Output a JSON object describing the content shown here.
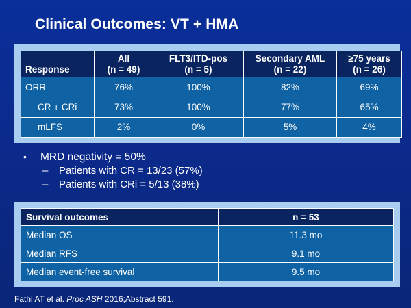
{
  "slide": {
    "title": "Clinical Outcomes: VT + HMA"
  },
  "response_table": {
    "header": {
      "response": "Response",
      "columns": [
        {
          "line1": "All",
          "line2": "(n = 49)"
        },
        {
          "line1": "FLT3/ITD-pos",
          "line2": "(n = 5)"
        },
        {
          "line1": "Secondary AML",
          "line2": "(n = 22)"
        },
        {
          "line1": "≥75 years",
          "line2": "(n = 26)"
        }
      ]
    },
    "rows": [
      {
        "label": "ORR",
        "values": [
          "76%",
          "100%",
          "82%",
          "69%"
        ]
      },
      {
        "label": "CR + CRi",
        "values": [
          "73%",
          "100%",
          "77%",
          "65%"
        ]
      },
      {
        "label": "mLFS",
        "values": [
          "2%",
          "0%",
          "5%",
          "4%"
        ]
      }
    ]
  },
  "bullets": {
    "main": {
      "mark": "•",
      "text": "MRD negativity = 50%"
    },
    "subs": [
      {
        "mark": "–",
        "text": "Patients with CR = 13/23 (57%)"
      },
      {
        "mark": "–",
        "text": "Patients with CRi = 5/13 (38%)"
      }
    ]
  },
  "survival_table": {
    "header": {
      "label": "Survival outcomes",
      "value": "n = 53"
    },
    "rows": [
      {
        "label": "Median OS",
        "value": "11.3 mo"
      },
      {
        "label": "Median RFS",
        "value": "9.1 mo"
      },
      {
        "label": "Median event-free survival",
        "value": "9.5 mo"
      }
    ]
  },
  "citation": {
    "prefix": "Fathi AT et al. ",
    "journal": "Proc ASH",
    "suffix": " 2016;Abstract 591."
  }
}
